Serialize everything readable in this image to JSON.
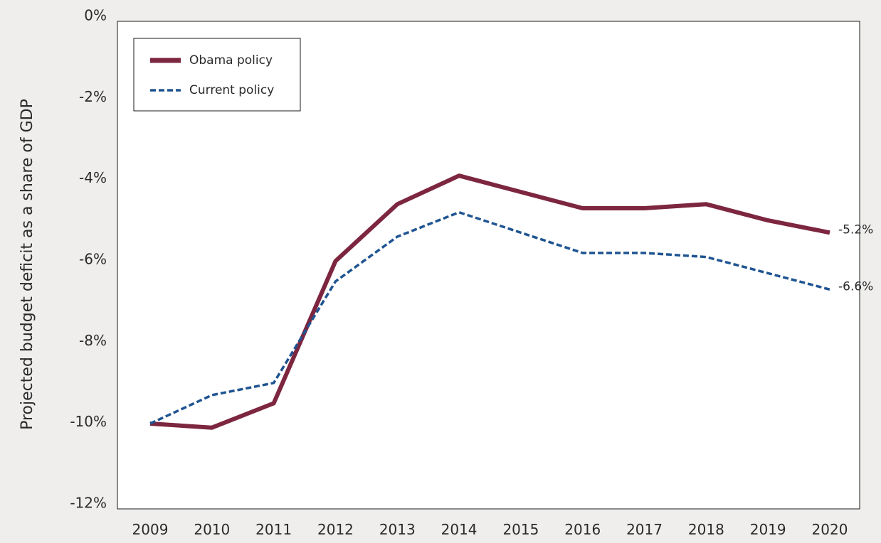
{
  "chart_data": {
    "type": "line",
    "title": "",
    "xlabel": "",
    "ylabel": "Projected budget deficit as a share of GDP",
    "x": [
      2009,
      2010,
      2011,
      2012,
      2013,
      2014,
      2015,
      2016,
      2017,
      2018,
      2019,
      2020
    ],
    "x_tick_labels": [
      "2009",
      "2010",
      "2011",
      "2012",
      "2013",
      "2014",
      "2015",
      "2016",
      "2017",
      "2018",
      "2019",
      "2020"
    ],
    "ylim": [
      -12,
      0
    ],
    "y_ticks": [
      0,
      -2,
      -4,
      -6,
      -8,
      -10,
      -12
    ],
    "y_tick_labels": [
      "0%",
      "-2%",
      "-4%",
      "-6%",
      "-8%",
      "-10%",
      "-12%"
    ],
    "grid": false,
    "legend_position": "top-left",
    "series": [
      {
        "name": "Obama policy",
        "style": "solid",
        "color": "#7d2640",
        "values": [
          -9.9,
          -10.0,
          -9.4,
          -5.9,
          -4.5,
          -3.8,
          -4.2,
          -4.6,
          -4.6,
          -4.5,
          -4.9,
          -5.2
        ],
        "end_label": "-5.2%"
      },
      {
        "name": "Current policy",
        "style": "dashed",
        "color": "#1f5491",
        "values": [
          -9.9,
          -9.2,
          -8.9,
          -6.4,
          -5.3,
          -4.7,
          -5.2,
          -5.7,
          -5.7,
          -5.8,
          -6.2,
          -6.6
        ],
        "end_label": "-6.6%"
      }
    ]
  }
}
